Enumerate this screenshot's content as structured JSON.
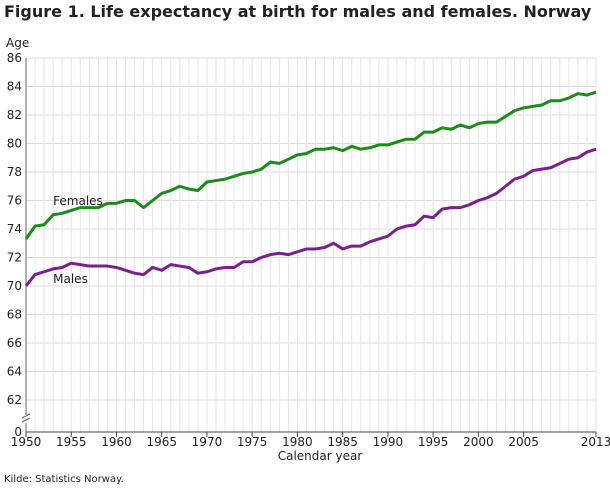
{
  "title": "Figure 1. Life expectancy at birth for males and females. Norway",
  "source": "Kilde: Statistics Norway.",
  "chart_data": {
    "type": "line",
    "ylabel": "Age",
    "xlabel": "Calendar year",
    "ylim": [
      0,
      86
    ],
    "y_axis_break": [
      0,
      62
    ],
    "yticks": [
      0,
      62,
      64,
      66,
      68,
      70,
      72,
      74,
      76,
      78,
      80,
      82,
      84,
      86
    ],
    "xlim": [
      1950,
      2013
    ],
    "xticks": [
      1950,
      1955,
      1960,
      1965,
      1970,
      1975,
      1980,
      1985,
      1990,
      1995,
      2000,
      2005,
      2013
    ],
    "grid": true,
    "x": [
      1950,
      1951,
      1952,
      1953,
      1954,
      1955,
      1956,
      1957,
      1958,
      1959,
      1960,
      1961,
      1962,
      1963,
      1964,
      1965,
      1966,
      1967,
      1968,
      1969,
      1970,
      1971,
      1972,
      1973,
      1974,
      1975,
      1976,
      1977,
      1978,
      1979,
      1980,
      1981,
      1982,
      1983,
      1984,
      1985,
      1986,
      1987,
      1988,
      1989,
      1990,
      1991,
      1992,
      1993,
      1994,
      1995,
      1996,
      1997,
      1998,
      1999,
      2000,
      2001,
      2002,
      2003,
      2004,
      2005,
      2006,
      2007,
      2008,
      2009,
      2010,
      2011,
      2012,
      2013
    ],
    "series": [
      {
        "name": "Females",
        "color": "#1a8c1a",
        "values": [
          73.3,
          74.2,
          74.3,
          75.0,
          75.1,
          75.3,
          75.5,
          75.5,
          75.5,
          75.8,
          75.8,
          76.0,
          76.0,
          75.5,
          76.0,
          76.5,
          76.7,
          77.0,
          76.8,
          76.7,
          77.3,
          77.4,
          77.5,
          77.7,
          77.9,
          78.0,
          78.2,
          78.7,
          78.6,
          78.9,
          79.2,
          79.3,
          79.6,
          79.6,
          79.7,
          79.5,
          79.8,
          79.6,
          79.7,
          79.9,
          79.9,
          80.1,
          80.3,
          80.3,
          80.8,
          80.8,
          81.1,
          81.0,
          81.3,
          81.1,
          81.4,
          81.5,
          81.5,
          81.9,
          82.3,
          82.5,
          82.6,
          82.7,
          83.0,
          83.0,
          83.2,
          83.5,
          83.4,
          83.6
        ]
      },
      {
        "name": "Males",
        "color": "#7b1f8f",
        "values": [
          70.0,
          70.8,
          71.0,
          71.2,
          71.3,
          71.6,
          71.5,
          71.4,
          71.4,
          71.4,
          71.3,
          71.1,
          70.9,
          70.8,
          71.3,
          71.1,
          71.5,
          71.4,
          71.3,
          70.9,
          71.0,
          71.2,
          71.3,
          71.3,
          71.7,
          71.7,
          72.0,
          72.2,
          72.3,
          72.2,
          72.4,
          72.6,
          72.6,
          72.7,
          73.0,
          72.6,
          72.8,
          72.8,
          73.1,
          73.3,
          73.5,
          74.0,
          74.2,
          74.3,
          74.9,
          74.8,
          75.4,
          75.5,
          75.5,
          75.7,
          76.0,
          76.2,
          76.5,
          77.0,
          77.5,
          77.7,
          78.1,
          78.2,
          78.3,
          78.6,
          78.9,
          79.0,
          79.4,
          79.6
        ]
      }
    ]
  }
}
